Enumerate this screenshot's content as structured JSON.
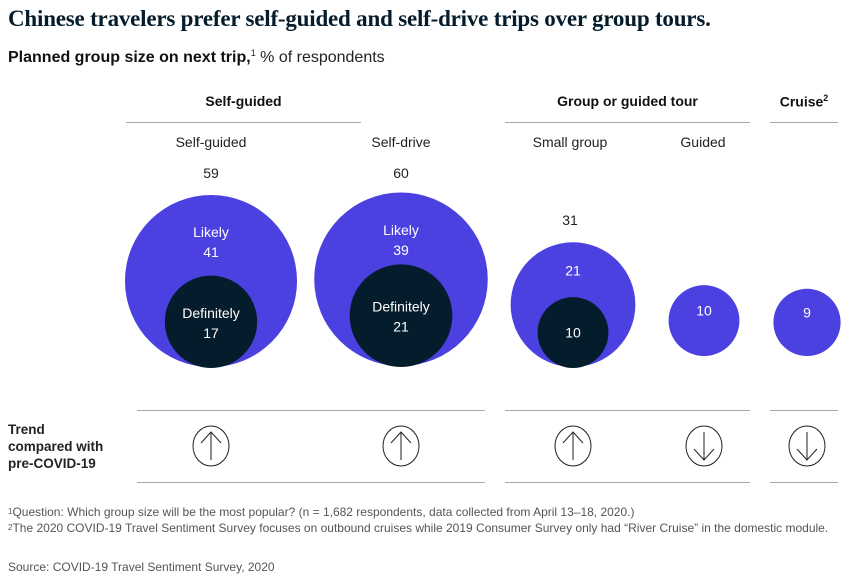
{
  "title": "Chinese travelers prefer self-guided and self-drive trips over group tours.",
  "subtitle": {
    "bold": "Planned group size on next trip,",
    "footnote_ref": "1",
    "rest": " % of respondents"
  },
  "colors": {
    "likely": "#4a41e0",
    "definitely": "#051c2c",
    "text_on_dark": "#ffffff",
    "rule": "#a8a8a8"
  },
  "groups": [
    {
      "label": "Self-guided",
      "footnote_ref": ""
    },
    {
      "label": "Group or guided tour",
      "footnote_ref": ""
    },
    {
      "label": "Cruise",
      "footnote_ref": "2"
    }
  ],
  "trend_label": [
    "Trend",
    "compared with",
    "pre-COVID-19"
  ],
  "chart_data": {
    "type": "bubble",
    "title": "Chinese travelers prefer self-guided and self-drive trips over group tours.",
    "subtitle": "Planned group size on next trip, % of respondents",
    "unit": "% of respondents",
    "categories": [
      "Self-guided",
      "Self-drive",
      "Small group",
      "Guided",
      "Cruise"
    ],
    "category_groups": [
      "Self-guided",
      "Self-guided",
      "Group or guided tour",
      "Group or guided tour",
      "Cruise"
    ],
    "series": [
      {
        "name": "Likely",
        "values": [
          41,
          39,
          21,
          10,
          9
        ]
      },
      {
        "name": "Definitely",
        "values": [
          17,
          21,
          10,
          null,
          null
        ]
      }
    ],
    "totals": [
      59,
      60,
      31,
      null,
      null
    ],
    "trend_vs_pre_covid": [
      "up",
      "up",
      "up",
      "down",
      "down"
    ]
  },
  "footnotes": [
    {
      "ref": "1",
      "text": "Question: Which group size will be the most popular? (n = 1,682 respondents, data collected from April 13–18, 2020.)"
    },
    {
      "ref": "2",
      "text": "The 2020 COVID-19 Travel Sentiment Survey focuses on outbound cruises while 2019 Consumer Survey only had “River Cruise” in the domestic module."
    }
  ],
  "source": "Source: COVID-19 Travel Sentiment Survey, 2020"
}
